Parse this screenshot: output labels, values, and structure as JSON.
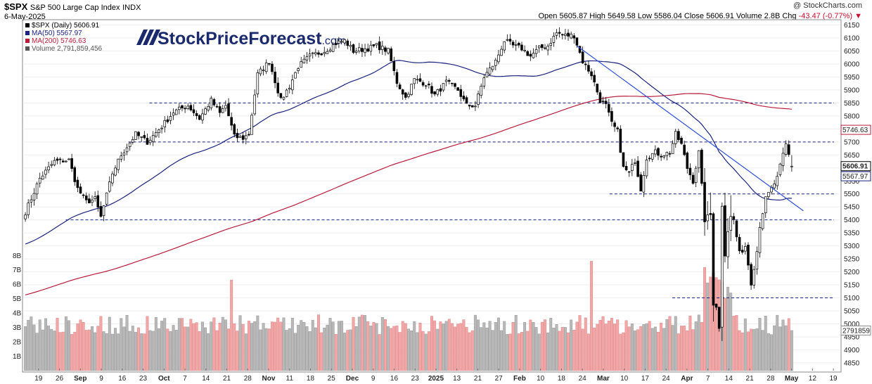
{
  "header": {
    "symbol": "$SPX",
    "name": "S&P 500 Large Cap Index",
    "exchange": "INDX",
    "date": "6-May-2025",
    "credit": "@ StockCharts.com",
    "ohlc": {
      "open_label": "Open",
      "open": "5605.87",
      "high_label": "High",
      "high": "5649.58",
      "low_label": "Low",
      "low": "5586.04",
      "close_label": "Close",
      "close": "5606.91",
      "volume_label": "Volume",
      "volume": "2.8B",
      "chg_label": "Chg",
      "chg": "-43.47 (-0.77%)"
    }
  },
  "watermark": {
    "brand": "StockPriceForecast",
    "suffix": ".com"
  },
  "legend": [
    {
      "text": "$SPX (Daily) 5606.91",
      "color": "#000000"
    },
    {
      "text": "MA(50) 5567.97",
      "color": "#1a237e"
    },
    {
      "text": "MA(200) 5746.63",
      "color": "#b71c3c"
    },
    {
      "text": "Volume 2,791,859,456",
      "color": "#555555"
    }
  ],
  "right_tags": {
    "close": "5606.91",
    "ma50": "5567.97",
    "ma200": "5746.63",
    "volume": "2791859"
  },
  "colors": {
    "up": "#ffffff",
    "down": "#000000",
    "ma50": "#1a237e",
    "ma200": "#b71c3c",
    "volume_up": "#b8b8b8",
    "volume_down": "#f4a6a6",
    "hline": "#1a237e",
    "trendline": "#2f4fd6"
  },
  "chart_data": {
    "type": "candlestick",
    "y_range": [
      4820,
      6165
    ],
    "y_ticks": [
      6150,
      6100,
      6050,
      6000,
      5950,
      5900,
      5850,
      5800,
      5750,
      5700,
      5650,
      5600,
      5550,
      5500,
      5450,
      5400,
      5350,
      5300,
      5250,
      5200,
      5150,
      5100,
      5050,
      5000,
      4950,
      4900,
      4850
    ],
    "volume_ticks": [
      "1B",
      "2B",
      "3B",
      "4B",
      "5B",
      "6B",
      "7B",
      "8B"
    ],
    "volume_range_b": [
      0,
      8.6
    ],
    "x_labels": [
      "19",
      "26",
      "Sep",
      "9",
      "16",
      "23",
      "Oct",
      "7",
      "14",
      "21",
      "28",
      "Nov",
      "11",
      "18",
      "25",
      "Dec",
      "9",
      "16",
      "23",
      "2025",
      "13",
      "21",
      "27",
      "Feb",
      "10",
      "18",
      "24",
      "Mar",
      "10",
      "17",
      "24",
      "Apr",
      "7",
      "14",
      "21",
      "28",
      "May",
      "12",
      "19"
    ],
    "support_levels": [
      {
        "y": 5850,
        "from_label_index": 6,
        "to_end": true
      },
      {
        "y": 5700,
        "from_label_index": 5,
        "to_end": true
      },
      {
        "y": 5500,
        "from_label_index": 28,
        "to_end": true
      },
      {
        "y": 5400,
        "from_label_index": 2,
        "to_end": true
      },
      {
        "y": 5100,
        "from_label_index": 31,
        "to_end": true
      }
    ],
    "trendline": {
      "from": {
        "bar": 190,
        "y": 6070
      },
      "to": {
        "bar": 268,
        "y": 5435
      }
    },
    "waypoints_close": [
      [
        0,
        5430
      ],
      [
        5,
        5560
      ],
      [
        10,
        5625
      ],
      [
        15,
        5630
      ],
      [
        18,
        5520
      ],
      [
        21,
        5470
      ],
      [
        24,
        5480
      ],
      [
        26,
        5410
      ],
      [
        30,
        5580
      ],
      [
        33,
        5650
      ],
      [
        38,
        5730
      ],
      [
        42,
        5700
      ],
      [
        47,
        5760
      ],
      [
        51,
        5815
      ],
      [
        56,
        5840
      ],
      [
        60,
        5790
      ],
      [
        64,
        5860
      ],
      [
        67,
        5810
      ],
      [
        69,
        5840
      ],
      [
        72,
        5720
      ],
      [
        75,
        5715
      ],
      [
        77,
        5730
      ],
      [
        80,
        5960
      ],
      [
        84,
        6010
      ],
      [
        88,
        5860
      ],
      [
        91,
        5915
      ],
      [
        94,
        5990
      ],
      [
        98,
        6030
      ],
      [
        103,
        6050
      ],
      [
        107,
        6080
      ],
      [
        110,
        6090
      ],
      [
        113,
        6050
      ],
      [
        118,
        6060
      ],
      [
        121,
        6070
      ],
      [
        125,
        6050
      ],
      [
        128,
        5930
      ],
      [
        131,
        5870
      ],
      [
        134,
        5940
      ],
      [
        138,
        5925
      ],
      [
        141,
        5880
      ],
      [
        145,
        5930
      ],
      [
        149,
        5900
      ],
      [
        152,
        5840
      ],
      [
        155,
        5840
      ],
      [
        158,
        5950
      ],
      [
        162,
        6010
      ],
      [
        165,
        6090
      ],
      [
        168,
        6070
      ],
      [
        171,
        6060
      ],
      [
        174,
        6030
      ],
      [
        177,
        6060
      ],
      [
        180,
        6070
      ],
      [
        183,
        6120
      ],
      [
        186,
        6110
      ],
      [
        189,
        6110
      ],
      [
        192,
        6010
      ],
      [
        195,
        5960
      ],
      [
        198,
        5860
      ],
      [
        200,
        5840
      ],
      [
        202,
        5770
      ],
      [
        204,
        5740
      ],
      [
        206,
        5600
      ],
      [
        208,
        5580
      ],
      [
        210,
        5630
      ],
      [
        212,
        5520
      ],
      [
        214,
        5640
      ],
      [
        217,
        5660
      ],
      [
        219,
        5650
      ],
      [
        222,
        5660
      ],
      [
        224,
        5730
      ],
      [
        226,
        5690
      ],
      [
        228,
        5600
      ],
      [
        230,
        5550
      ],
      [
        232,
        5660
      ],
      [
        234,
        5400
      ],
      [
        236,
        5420
      ],
      [
        237,
        5080
      ],
      [
        238,
        5070
      ],
      [
        239,
        4980
      ],
      [
        240,
        5460
      ],
      [
        241,
        5270
      ],
      [
        242,
        5360
      ],
      [
        243,
        5410
      ],
      [
        244,
        5400
      ],
      [
        246,
        5270
      ],
      [
        248,
        5300
      ],
      [
        250,
        5160
      ],
      [
        252,
        5280
      ],
      [
        253,
        5380
      ],
      [
        255,
        5480
      ],
      [
        257,
        5520
      ],
      [
        259,
        5560
      ],
      [
        261,
        5650
      ],
      [
        262,
        5690
      ],
      [
        263,
        5650
      ],
      [
        264,
        5607
      ]
    ]
  }
}
